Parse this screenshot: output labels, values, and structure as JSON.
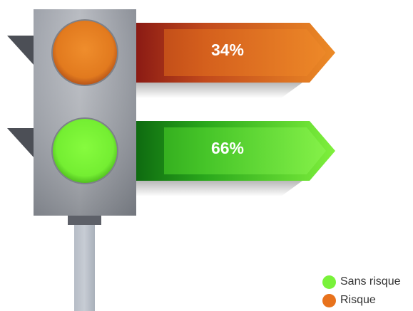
{
  "chart_data": {
    "type": "bar",
    "style": "traffic-light infographic",
    "categories": [
      "Risque",
      "Sans risque"
    ],
    "values": [
      34,
      66
    ],
    "value_labels": [
      "34%",
      "66%"
    ],
    "unit": "%",
    "colors": {
      "Risque": "#e87d1e",
      "Sans risque": "#79f23a"
    },
    "legend": {
      "position": "bottom-right",
      "entries": [
        {
          "label": "Sans risque",
          "color": "#79f23a"
        },
        {
          "label": "Risque",
          "color": "#e8721c"
        }
      ]
    },
    "title": "",
    "xlabel": "",
    "ylabel": "",
    "grid": false
  }
}
